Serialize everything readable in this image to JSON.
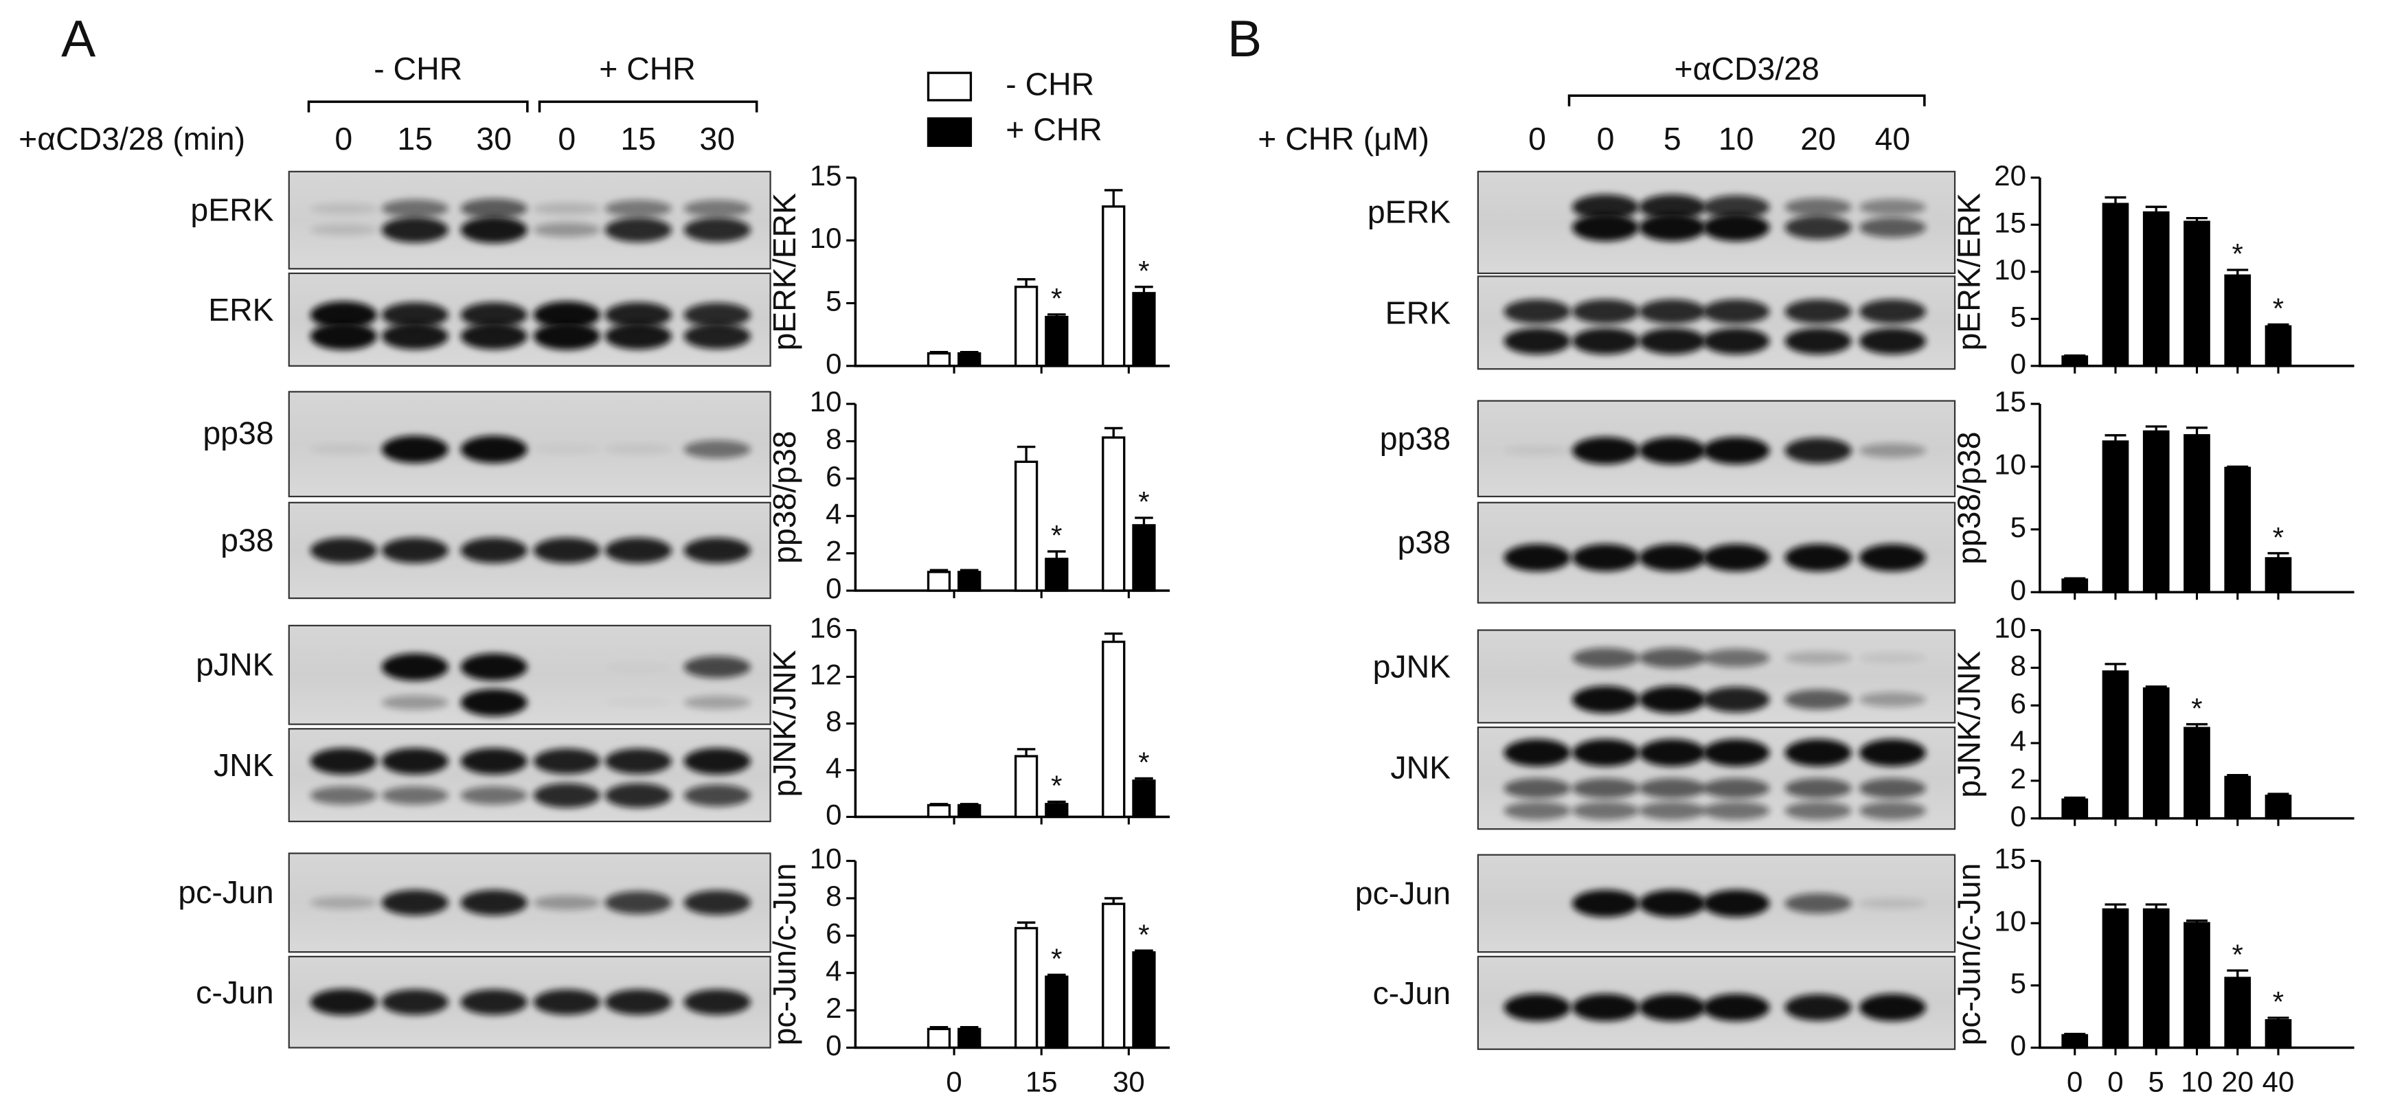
{
  "panel_labels": [
    "A",
    "B"
  ],
  "panel_a": {
    "group_labels": [
      "- CHR",
      "+ CHR"
    ],
    "lane_axis_label": "+αCD3/28 (min)",
    "lane_labels": [
      "0",
      "15",
      "30",
      "0",
      "15",
      "30"
    ],
    "blot_labels": [
      "pERK",
      "ERK",
      "pp38",
      "p38",
      "pJNK",
      "JNK",
      "pc-Jun",
      "c-Jun"
    ]
  },
  "panel_b": {
    "group_label": "+αCD3/28",
    "lane_axis_label": "+ CHR (μM)",
    "lane_labels": [
      "0",
      "0",
      "5",
      "10",
      "20",
      "40"
    ],
    "blot_labels": [
      "pERK",
      "ERK",
      "pp38",
      "p38",
      "pJNK",
      "JNK",
      "pc-Jun",
      "c-Jun"
    ]
  },
  "chart_data": [
    {
      "type": "bar",
      "ylabel": "pERK/ERK",
      "ylim": [
        0,
        15
      ],
      "yticks": [
        0,
        5,
        10,
        15
      ],
      "categories": [
        null,
        null,
        null
      ],
      "series": [
        {
          "name": "- CHR",
          "color": "#ffffff",
          "values": [
            1,
            6.3,
            12.7
          ],
          "errors": [
            0.1,
            0.6,
            1.3
          ],
          "annotations": [
            null,
            null,
            null
          ]
        },
        {
          "name": "+ CHR",
          "color": "#000000",
          "values": [
            1,
            3.9,
            5.8
          ],
          "errors": [
            0.1,
            0.2,
            0.5
          ],
          "annotations": [
            null,
            "*",
            "*"
          ]
        }
      ]
    },
    {
      "type": "bar",
      "ylabel": "pp38/p38",
      "ylim": [
        0,
        10
      ],
      "yticks": [
        0,
        2,
        4,
        6,
        8,
        10
      ],
      "categories": [
        null,
        null,
        null
      ],
      "series": [
        {
          "color": "#ffffff",
          "values": [
            1,
            6.9,
            8.2
          ],
          "errors": [
            0.1,
            0.8,
            0.5
          ],
          "annotations": [
            null,
            null,
            null
          ]
        },
        {
          "color": "#000000",
          "values": [
            1,
            1.7,
            3.5
          ],
          "errors": [
            0.1,
            0.4,
            0.4
          ],
          "annotations": [
            null,
            "*",
            "*"
          ]
        }
      ]
    },
    {
      "type": "bar",
      "ylabel": "pJNK/JNK",
      "ylim": [
        0,
        16
      ],
      "yticks": [
        0,
        4,
        8,
        12,
        16
      ],
      "categories": [
        null,
        null,
        null
      ],
      "series": [
        {
          "color": "#ffffff",
          "values": [
            1,
            5.2,
            15
          ],
          "errors": [
            0.1,
            0.6,
            0.7
          ],
          "annotations": [
            null,
            null,
            null
          ]
        },
        {
          "color": "#000000",
          "values": [
            1,
            1.1,
            3.1
          ],
          "errors": [
            0.1,
            0.2,
            0.2
          ],
          "annotations": [
            null,
            "*",
            "*"
          ]
        }
      ]
    },
    {
      "type": "bar",
      "ylabel": "pc-Jun/c-Jun",
      "ylim": [
        0,
        10
      ],
      "yticks": [
        0,
        2,
        4,
        6,
        8,
        10
      ],
      "categories": [
        "0",
        "15",
        "30"
      ],
      "series": [
        {
          "color": "#ffffff",
          "values": [
            1,
            6.4,
            7.7
          ],
          "errors": [
            0.1,
            0.3,
            0.3
          ],
          "annotations": [
            null,
            null,
            null
          ]
        },
        {
          "color": "#000000",
          "values": [
            1,
            3.8,
            5.1
          ],
          "errors": [
            0.1,
            0.1,
            0.1
          ],
          "annotations": [
            null,
            "*",
            "*"
          ]
        }
      ]
    },
    {
      "type": "bar",
      "ylabel": "pERK/ERK",
      "ylim": [
        0,
        20
      ],
      "yticks": [
        0,
        5,
        10,
        15,
        20
      ],
      "categories": [
        null,
        null,
        null,
        null,
        null,
        null
      ],
      "series": [
        {
          "color": "#000000",
          "values": [
            1,
            17.2,
            16.3,
            15.3,
            9.6,
            4.2
          ],
          "errors": [
            0.1,
            0.7,
            0.6,
            0.4,
            0.6,
            0.2
          ],
          "annotations": [
            null,
            null,
            null,
            null,
            "*",
            "*"
          ]
        }
      ]
    },
    {
      "type": "bar",
      "ylabel": "pp38/p38",
      "ylim": [
        0,
        15
      ],
      "yticks": [
        0,
        5,
        10,
        15
      ],
      "categories": [
        null,
        null,
        null,
        null,
        null,
        null
      ],
      "series": [
        {
          "color": "#000000",
          "values": [
            1,
            12,
            12.8,
            12.5,
            9.9,
            2.7
          ],
          "errors": [
            0.1,
            0.5,
            0.4,
            0.6,
            0.1,
            0.4
          ],
          "annotations": [
            null,
            null,
            null,
            null,
            null,
            "*"
          ]
        }
      ]
    },
    {
      "type": "bar",
      "ylabel": "pJNK/JNK",
      "ylim": [
        0,
        10
      ],
      "yticks": [
        0,
        2,
        4,
        6,
        8,
        10
      ],
      "categories": [
        null,
        null,
        null,
        null,
        null,
        null
      ],
      "series": [
        {
          "color": "#000000",
          "values": [
            1,
            7.8,
            6.9,
            4.8,
            2.2,
            1.2
          ],
          "errors": [
            0.1,
            0.4,
            0.1,
            0.2,
            0.1,
            0.1
          ],
          "annotations": [
            null,
            null,
            null,
            "*",
            null,
            null
          ]
        }
      ]
    },
    {
      "type": "bar",
      "ylabel": "pc-Jun/c-Jun",
      "ylim": [
        0,
        15
      ],
      "yticks": [
        0,
        5,
        10,
        15
      ],
      "categories": [
        "0",
        "0",
        "5",
        "10",
        "20",
        "40"
      ],
      "series": [
        {
          "color": "#000000",
          "values": [
            1,
            11.1,
            11.1,
            10,
            5.6,
            2.2
          ],
          "errors": [
            0.1,
            0.4,
            0.4,
            0.2,
            0.6,
            0.2
          ],
          "annotations": [
            null,
            null,
            null,
            null,
            "*",
            "*"
          ]
        }
      ]
    }
  ]
}
